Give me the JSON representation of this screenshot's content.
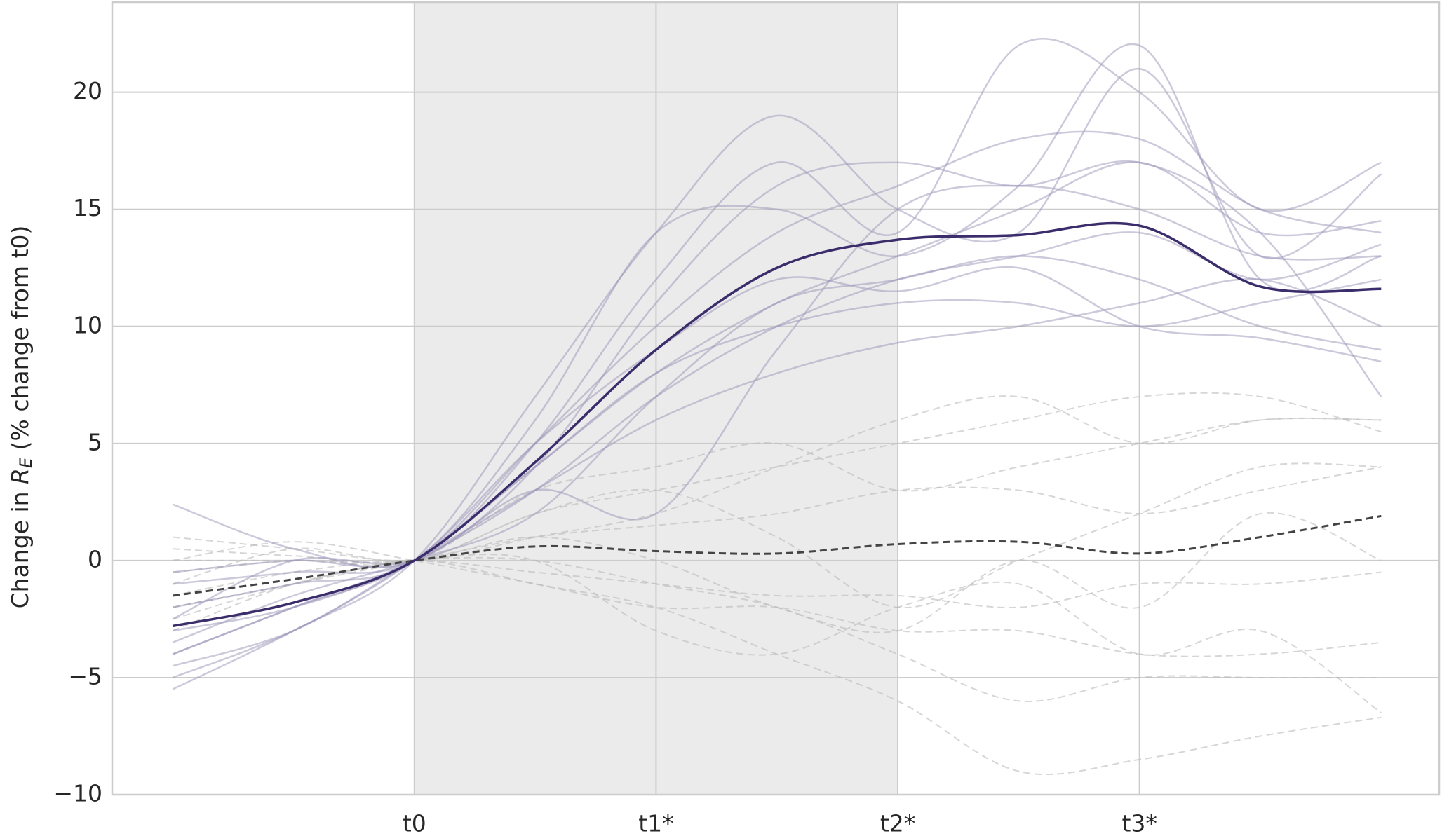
{
  "chart_data": {
    "type": "line",
    "ylabel_parts": [
      "Change in ",
      "R",
      "E",
      " (% change from t0)"
    ],
    "x": [
      -1,
      -0.5,
      0,
      0.5,
      1,
      1.5,
      2,
      2.5,
      3,
      3.5,
      4
    ],
    "xlim": [
      -1.25,
      4.24
    ],
    "xticks": [
      {
        "value": 0,
        "label": "t0"
      },
      {
        "value": 1,
        "label": "t1*"
      },
      {
        "value": 2,
        "label": "t2*"
      },
      {
        "value": 3,
        "label": "t3*"
      }
    ],
    "ylim": [
      -10,
      23.85
    ],
    "yticks": [
      {
        "value": -10,
        "label": "−10"
      },
      {
        "value": -5,
        "label": "−5"
      },
      0,
      5,
      10,
      15,
      20
    ],
    "grid": true,
    "shaded_span": [
      0,
      2
    ],
    "shade_color": "#ebebeb",
    "series": [
      {
        "color": "#bbbbbb",
        "dashed": true,
        "opacity": 0.6,
        "width": 2,
        "values": [
          1,
          0.5,
          0,
          1,
          2,
          4,
          6,
          7,
          5,
          6,
          6
        ]
      },
      {
        "color": "#bbbbbb",
        "dashed": true,
        "opacity": 0.6,
        "width": 2,
        "values": [
          -2,
          -1,
          0,
          -1,
          -2,
          -4,
          -6,
          -9,
          -8.5,
          -7.5,
          -6.7
        ]
      },
      {
        "color": "#bbbbbb",
        "dashed": true,
        "opacity": 0.6,
        "width": 2,
        "values": [
          -1,
          0.5,
          0,
          2,
          3,
          4,
          5,
          6,
          7,
          7,
          5.5
        ]
      },
      {
        "color": "#bbbbbb",
        "dashed": true,
        "opacity": 0.6,
        "width": 2,
        "values": [
          0,
          0.8,
          0,
          -1,
          -2,
          -2,
          -3,
          -3,
          -4,
          -4,
          -3.5
        ]
      },
      {
        "color": "#bbbbbb",
        "dashed": true,
        "opacity": 0.6,
        "width": 2,
        "values": [
          -3,
          -1,
          0,
          0,
          -1,
          -2,
          -4,
          -6,
          -5,
          -5,
          -5
        ]
      },
      {
        "color": "#bbbbbb",
        "dashed": true,
        "opacity": 0.6,
        "width": 2,
        "values": [
          -0.5,
          0,
          0,
          3,
          4,
          5,
          3,
          4,
          5,
          6,
          6
        ]
      },
      {
        "color": "#bbbbbb",
        "dashed": true,
        "opacity": 0.6,
        "width": 2,
        "values": [
          -2,
          -1,
          0,
          1,
          1.5,
          2,
          3,
          3,
          2,
          3,
          4
        ]
      },
      {
        "color": "#bbbbbb",
        "dashed": true,
        "opacity": 0.6,
        "width": 2,
        "values": [
          -1.5,
          -0.5,
          0,
          -0.5,
          -1,
          -1.5,
          -1.5,
          -2,
          -1,
          -1,
          -0.5
        ]
      },
      {
        "color": "#bbbbbb",
        "dashed": true,
        "opacity": 0.6,
        "width": 2,
        "values": [
          0.5,
          0.2,
          0,
          2,
          3,
          1,
          -2,
          0,
          2,
          4,
          4
        ]
      },
      {
        "color": "#bbbbbb",
        "dashed": true,
        "opacity": 0.6,
        "width": 2,
        "values": [
          -2.5,
          -1,
          0,
          0,
          -3,
          -4,
          -2,
          -1,
          -4,
          -3,
          -6.5
        ]
      },
      {
        "color": "#bbbbbb",
        "dashed": true,
        "opacity": 0.6,
        "width": 2,
        "values": [
          0,
          0,
          0,
          1,
          0,
          -2,
          -3,
          0,
          -2,
          2,
          0
        ]
      },
      {
        "color": "#9a94b8",
        "dashed": false,
        "opacity": 0.5,
        "width": 2.5,
        "values": [
          2.4,
          0.5,
          0,
          5,
          12,
          17,
          14,
          22,
          20,
          15,
          17
        ]
      },
      {
        "color": "#9a94b8",
        "dashed": false,
        "opacity": 0.5,
        "width": 2.5,
        "values": [
          -5.5,
          -3,
          0,
          7,
          14,
          19,
          15,
          14,
          21,
          13,
          16.5
        ]
      },
      {
        "color": "#9a94b8",
        "dashed": false,
        "opacity": 0.5,
        "width": 2.5,
        "values": [
          -4,
          -2,
          0,
          3,
          7,
          10,
          12,
          13,
          14,
          12,
          13.5
        ]
      },
      {
        "color": "#9a94b8",
        "dashed": false,
        "opacity": 0.5,
        "width": 2.5,
        "values": [
          -3,
          -2,
          0,
          4,
          8,
          11,
          13,
          15,
          17,
          14,
          14.5
        ]
      },
      {
        "color": "#9a94b8",
        "dashed": false,
        "opacity": 0.5,
        "width": 2.5,
        "values": [
          -4.5,
          -3,
          0,
          3,
          6,
          8,
          9.3,
          10,
          11,
          12,
          10
        ]
      },
      {
        "color": "#9a94b8",
        "dashed": false,
        "opacity": 0.5,
        "width": 2.5,
        "values": [
          -2,
          -1,
          0,
          6,
          14,
          15,
          13,
          16,
          22,
          12,
          13
        ]
      },
      {
        "color": "#9a94b8",
        "dashed": false,
        "opacity": 0.5,
        "width": 2.5,
        "values": [
          -1,
          -0.5,
          0,
          5,
          10,
          14,
          16,
          18,
          18,
          15,
          14
        ]
      },
      {
        "color": "#9a94b8",
        "dashed": false,
        "opacity": 0.5,
        "width": 2.5,
        "values": [
          -3.5,
          -1.5,
          0,
          2,
          7,
          11,
          12,
          13,
          12,
          10,
          9
        ]
      },
      {
        "color": "#9a94b8",
        "dashed": false,
        "opacity": 0.5,
        "width": 2.5,
        "values": [
          -5,
          -3,
          0,
          4,
          8,
          10,
          11,
          11,
          10,
          11,
          12
        ]
      },
      {
        "color": "#9a94b8",
        "dashed": false,
        "opacity": 0.5,
        "width": 2.5,
        "values": [
          -2.5,
          0,
          0,
          3,
          2,
          9,
          15,
          16,
          15,
          13,
          13
        ]
      },
      {
        "color": "#9a94b8",
        "dashed": false,
        "opacity": 0.5,
        "width": 2.5,
        "values": [
          -4,
          -2,
          0,
          5,
          9,
          12,
          11.5,
          12.5,
          10,
          9.5,
          8.5
        ]
      },
      {
        "color": "#9a94b8",
        "dashed": false,
        "opacity": 0.5,
        "width": 2.5,
        "values": [
          -0.5,
          0,
          0,
          4,
          11,
          16,
          17,
          16,
          17,
          14,
          7
        ]
      },
      {
        "color": "#444444",
        "dashed": true,
        "opacity": 1,
        "width": 3,
        "values": [
          -1.5,
          -0.8,
          0,
          0.6,
          0.4,
          0.3,
          0.7,
          0.8,
          0.3,
          1.0,
          1.9
        ]
      },
      {
        "color": "#3b2c6b",
        "dashed": false,
        "opacity": 1,
        "width": 3.5,
        "values": [
          -2.8,
          -1.8,
          0,
          4.2,
          9.0,
          12.5,
          13.7,
          13.9,
          14.3,
          11.7,
          11.6
        ]
      }
    ]
  }
}
